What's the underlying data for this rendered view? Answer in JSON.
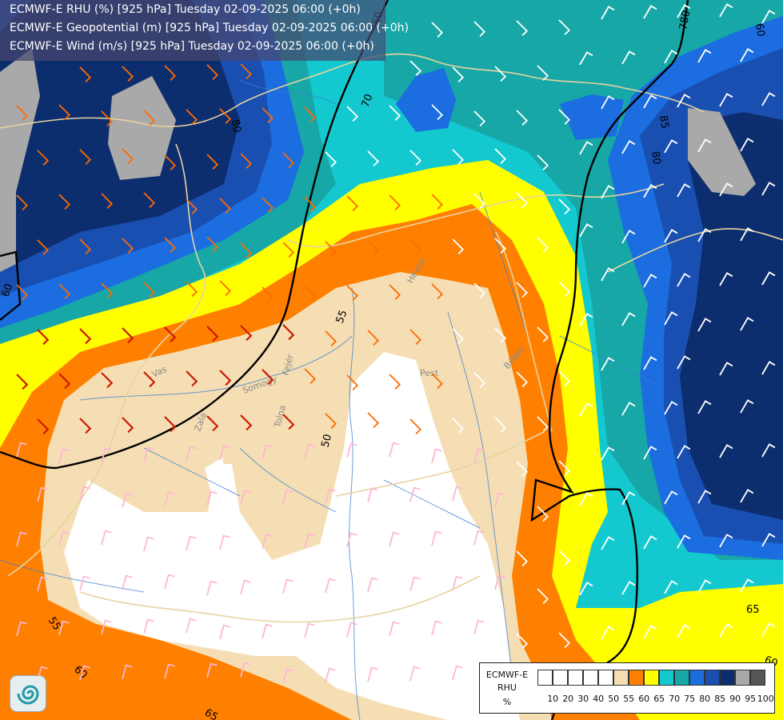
{
  "titles": [
    "ECMWF-E RHU (%) [925 hPa] Tuesday 02-09-2025 06:00 (+0h)",
    "ECMWF-E Geopotential (m) [925 hPa] Tuesday 02-09-2025 06:00 (+0h)",
    "ECMWF-E Wind (m/s) [925 hPa] Tuesday 02-09-2025 06:00 (+0h)"
  ],
  "legend": {
    "title_lines": [
      "ECMWF-E",
      "RHU",
      "%"
    ],
    "ticks": [
      "10",
      "20",
      "30",
      "40",
      "50",
      "55",
      "60",
      "65",
      "70",
      "75",
      "80",
      "85",
      "90",
      "95",
      "100"
    ],
    "colors": [
      "#ffffff",
      "#ffffff",
      "#ffffff",
      "#ffffff",
      "#ffffff",
      "#f5deb3",
      "#ff8000",
      "#ffff00",
      "#13c9cf",
      "#17a7a7",
      "#1b6de0",
      "#1a4fb2",
      "#0d2e6e",
      "#a9a9a9",
      "#555555"
    ]
  },
  "contour_labels": {
    "geopotential": [
      "760",
      "780"
    ],
    "rhu": [
      "50",
      "55",
      "60",
      "65",
      "70",
      "80",
      "85"
    ]
  },
  "place_labels": [
    "Vas",
    "Somogy",
    "Zala",
    "Tolna",
    "Fejér",
    "Pest",
    "Heves",
    "Békés"
  ],
  "wind_colors": {
    "calm": "#ffb6d5",
    "light": "#ffffff",
    "moderate": "#ff6a00",
    "strong": "#cc1a00"
  },
  "logo": "ecmwf-spiral-logo"
}
